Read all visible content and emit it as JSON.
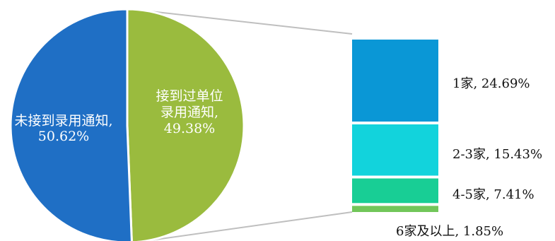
{
  "chart_data": {
    "type": "pie",
    "title": "",
    "pie": {
      "slices": [
        {
          "name": "not_received",
          "label_lines": [
            "未接到录用通知,",
            "50.62%"
          ],
          "value": 50.62,
          "color": "#1F6FC5"
        },
        {
          "name": "received",
          "label_lines": [
            "接到过单位",
            "录用通知,",
            "49.38%"
          ],
          "value": 49.38,
          "color": "#9ABB3E"
        }
      ]
    },
    "breakdown": {
      "type": "bar",
      "of_slice": "received",
      "segments": [
        {
          "name": "1",
          "label": "1家, 24.69%",
          "value": 24.69,
          "color": "#0A97D6"
        },
        {
          "name": "2-3",
          "label": "2-3家, 15.43%",
          "value": 15.43,
          "color": "#12D3DC"
        },
        {
          "name": "4-5",
          "label": "4-5家, 7.41%",
          "value": 7.41,
          "color": "#18CE95"
        },
        {
          "name": "6plus",
          "label": "6家及以上, 1.85%",
          "value": 1.85,
          "color": "#72C65A"
        }
      ]
    },
    "connector_color": "#BFBFBF"
  }
}
